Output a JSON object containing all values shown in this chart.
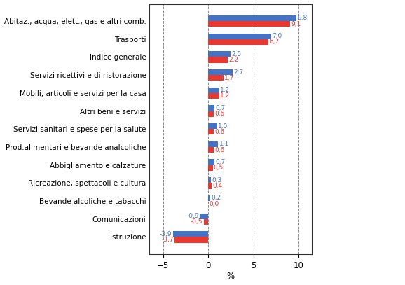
{
  "categories": [
    "Abitaz., acqua, elett., gas e altri comb.",
    "Trasporti",
    "Indice generale",
    "Servizi ricettivi e di ristorazione",
    "Mobili, articoli e servizi per la casa",
    "Altri beni e servizi",
    "Servizi sanitari e spese per la salute",
    "Prod.alimentari e bevande analcoliche",
    "Abbigliamento e calzature",
    "Ricreazione, spettacoli e cultura",
    "Bevande alcoliche e tabacchi",
    "Comunicazioni",
    "Istruzione"
  ],
  "toscana": [
    9.1,
    6.7,
    2.2,
    1.7,
    1.2,
    0.6,
    0.6,
    0.6,
    0.5,
    0.4,
    0.0,
    -0.5,
    -3.7
  ],
  "italia": [
    9.8,
    7.0,
    2.5,
    2.7,
    1.2,
    0.7,
    1.0,
    1.1,
    0.7,
    0.3,
    0.2,
    -0.9,
    -3.9
  ],
  "color_toscana": "#e8382f",
  "color_italia": "#4472c4",
  "xlabel": "%",
  "xlim": [
    -6.5,
    11.5
  ],
  "xticks": [
    -5,
    0,
    5,
    10
  ],
  "bar_height": 0.32,
  "background_color": "#ffffff",
  "grid_color": "#888888",
  "label_fontsize": 7.5,
  "tick_fontsize": 8.5,
  "value_fontsize": 6.5
}
